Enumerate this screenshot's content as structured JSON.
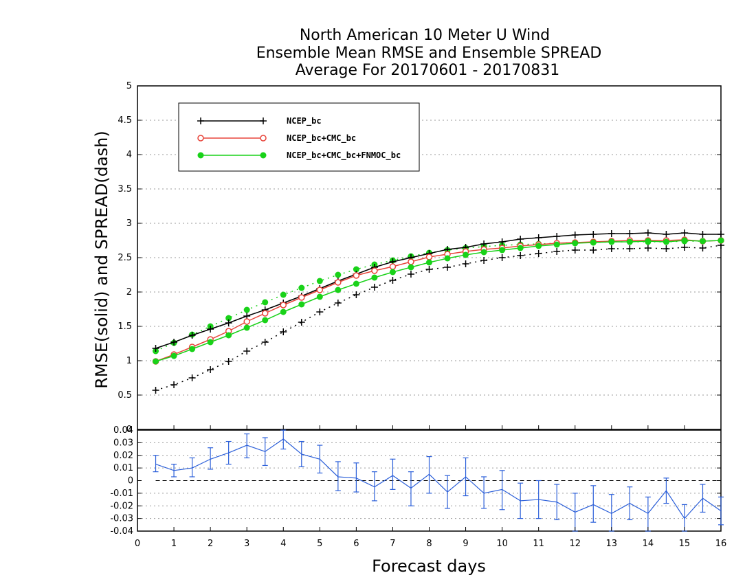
{
  "chart_data": [
    {
      "type": "line",
      "title_lines": [
        "North American 10 Meter U Wind",
        "Ensemble Mean RMSE and Ensemble SPREAD",
        "Average For 20170601 - 20170831"
      ],
      "xlabel": "Forecast days",
      "ylabel": "RMSE(solid) and SPREAD(dash)",
      "xlim": [
        0,
        16
      ],
      "ylim": [
        0,
        5
      ],
      "x_ticks": [
        "0",
        "1",
        "2",
        "3",
        "4",
        "5",
        "6",
        "7",
        "8",
        "9",
        "10",
        "11",
        "12",
        "13",
        "14",
        "15",
        "16"
      ],
      "y_ticks": [
        "0",
        "0.5",
        "1",
        "1.5",
        "2",
        "2.5",
        "3",
        "3.5",
        "4",
        "4.5",
        "5"
      ],
      "grid": "horizontal dotted",
      "legend_position": "top-left",
      "x": [
        0.5,
        1,
        1.5,
        2,
        2.5,
        3,
        3.5,
        4,
        4.5,
        5,
        5.5,
        6,
        6.5,
        7,
        7.5,
        8,
        8.5,
        9,
        9.5,
        10,
        10.5,
        11,
        11.5,
        12,
        12.5,
        13,
        13.5,
        14,
        14.5,
        15,
        15.5,
        16
      ],
      "series": [
        {
          "name": "NCEP_bc",
          "color": "#000000",
          "marker": "plus",
          "rmse": [
            1.18,
            1.27,
            1.37,
            1.46,
            1.55,
            1.65,
            1.74,
            1.84,
            1.94,
            2.05,
            2.16,
            2.26,
            2.36,
            2.44,
            2.5,
            2.56,
            2.62,
            2.65,
            2.7,
            2.73,
            2.77,
            2.79,
            2.81,
            2.83,
            2.84,
            2.85,
            2.85,
            2.86,
            2.84,
            2.86,
            2.84,
            2.84
          ],
          "spread": [
            0.57,
            0.65,
            0.75,
            0.87,
            0.99,
            1.14,
            1.27,
            1.42,
            1.56,
            1.71,
            1.84,
            1.96,
            2.07,
            2.17,
            2.26,
            2.33,
            2.36,
            2.41,
            2.46,
            2.5,
            2.53,
            2.56,
            2.59,
            2.61,
            2.61,
            2.63,
            2.63,
            2.64,
            2.63,
            2.65,
            2.64,
            2.68
          ]
        },
        {
          "name": "NCEP_bc+CMC_bc",
          "color": "#e8443a",
          "marker": "open-circle",
          "rmse": [
            0.99,
            1.09,
            1.2,
            1.31,
            1.43,
            1.57,
            1.69,
            1.81,
            1.92,
            2.03,
            2.14,
            2.24,
            2.31,
            2.37,
            2.44,
            2.51,
            2.55,
            2.59,
            2.62,
            2.64,
            2.67,
            2.69,
            2.71,
            2.72,
            2.73,
            2.74,
            2.75,
            2.75,
            2.75,
            2.76,
            2.74,
            2.75
          ]
        },
        {
          "name": "NCEP_bc+CMC_bc+FNMOC_bc",
          "color": "#19d219",
          "marker": "filled-circle",
          "rmse": [
            0.99,
            1.07,
            1.17,
            1.27,
            1.37,
            1.48,
            1.59,
            1.71,
            1.82,
            1.93,
            2.03,
            2.12,
            2.21,
            2.29,
            2.36,
            2.43,
            2.49,
            2.54,
            2.58,
            2.61,
            2.64,
            2.67,
            2.69,
            2.71,
            2.72,
            2.73,
            2.73,
            2.74,
            2.73,
            2.75,
            2.74,
            2.75
          ],
          "spread": [
            1.14,
            1.26,
            1.38,
            1.5,
            1.62,
            1.74,
            1.85,
            1.96,
            2.06,
            2.16,
            2.25,
            2.33,
            2.4,
            2.46,
            2.52,
            2.57,
            2.61,
            2.64,
            2.66,
            2.68,
            2.69,
            2.7,
            2.71,
            2.72,
            2.72,
            2.73,
            2.73,
            2.73,
            2.73,
            2.74,
            2.74,
            2.75
          ]
        }
      ]
    },
    {
      "type": "line",
      "xlim": [
        0,
        16
      ],
      "ylim": [
        -0.04,
        0.04
      ],
      "y_ticks": [
        "-0.04",
        "-0.03",
        "-0.02",
        "-0.01",
        "0",
        "0.01",
        "0.02",
        "0.03",
        "0.04"
      ],
      "grid": "horizontal dotted",
      "zero_line": "dashed",
      "series": [
        {
          "color": "#2b5fd9",
          "marker": "errorbar",
          "x": [
            0.5,
            1,
            1.5,
            2,
            2.5,
            3,
            3.5,
            4,
            4.5,
            5,
            5.5,
            6,
            6.5,
            7,
            7.5,
            8,
            8.5,
            9,
            9.5,
            10,
            10.5,
            11,
            11.5,
            12,
            12.5,
            13,
            13.5,
            14,
            14.5,
            15,
            15.5,
            16
          ],
          "values": [
            0.013,
            0.008,
            0.01,
            0.017,
            0.022,
            0.028,
            0.023,
            0.033,
            0.021,
            0.017,
            0.003,
            0.002,
            -0.005,
            0.004,
            -0.006,
            0.005,
            -0.009,
            0.003,
            -0.01,
            -0.007,
            -0.016,
            -0.015,
            -0.017,
            -0.025,
            -0.019,
            -0.026,
            -0.018,
            -0.026,
            -0.008,
            -0.03,
            -0.014,
            -0.024
          ],
          "err_low": [
            0.007,
            0.003,
            0.003,
            0.009,
            0.013,
            0.018,
            0.012,
            0.025,
            0.011,
            0.006,
            -0.008,
            -0.009,
            -0.016,
            -0.007,
            -0.02,
            -0.01,
            -0.022,
            -0.012,
            -0.022,
            -0.023,
            -0.03,
            -0.03,
            -0.031,
            -0.04,
            -0.033,
            -0.04,
            -0.031,
            -0.04,
            -0.018,
            -0.041,
            -0.025,
            -0.035
          ],
          "err_high": [
            0.02,
            0.013,
            0.018,
            0.026,
            0.031,
            0.037,
            0.034,
            0.042,
            0.031,
            0.028,
            0.015,
            0.014,
            0.007,
            0.017,
            0.007,
            0.019,
            0.004,
            0.018,
            0.003,
            0.008,
            -0.002,
            0.0,
            -0.003,
            -0.01,
            -0.004,
            -0.011,
            -0.005,
            -0.013,
            0.002,
            -0.019,
            -0.003,
            -0.013
          ]
        }
      ]
    }
  ]
}
